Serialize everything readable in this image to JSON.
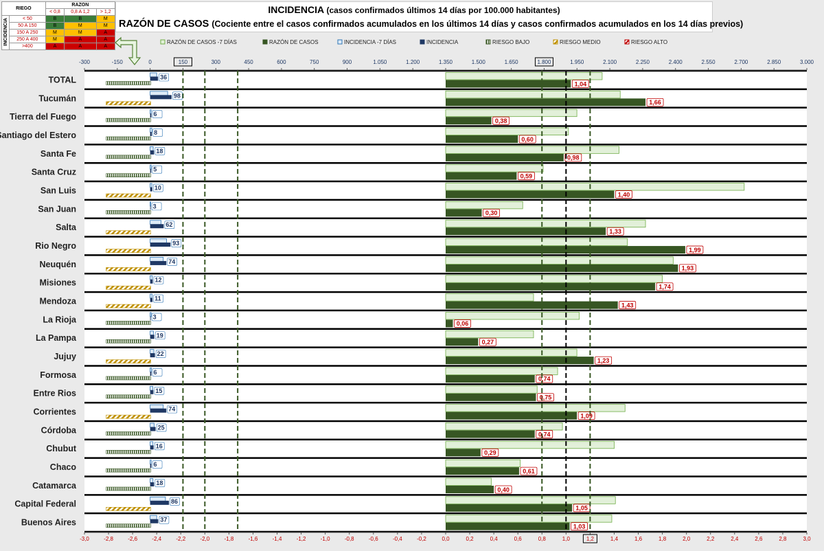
{
  "title": {
    "main": "INCIDENCIA",
    "main_sub": "(casos confirmados últimos 14 días por 100.000 habitantes)",
    "second": "RAZÓN DE CASOS",
    "second_sub": "(Cociente entre el casos confirmados acumulados en los últimos 14 días y casos confirmados acumulados en los 14 días previos)"
  },
  "risk_table": {
    "corner": "RIEGO",
    "razon_header": "RAZON",
    "incidencia_header": "INCIDENCIA",
    "razon_cols": [
      "< 0,8",
      "0,8 A 1,2",
      "> 1,2"
    ],
    "rows": [
      {
        "label": "< 50",
        "cells": [
          "B",
          "B",
          "M"
        ],
        "colors": [
          "g",
          "g",
          "y"
        ]
      },
      {
        "label": "50 A 150",
        "cells": [
          "B",
          "M",
          "M"
        ],
        "colors": [
          "g",
          "y",
          "y"
        ]
      },
      {
        "label": "150 A 250",
        "cells": [
          "M",
          "M",
          "A"
        ],
        "colors": [
          "y",
          "y",
          "r"
        ]
      },
      {
        "label": "250 A 400",
        "cells": [
          "M",
          "A",
          "A"
        ],
        "colors": [
          "y",
          "r",
          "r"
        ]
      },
      {
        "label": ">400",
        "cells": [
          "A",
          "A",
          "A"
        ],
        "colors": [
          "r",
          "r",
          "r"
        ]
      }
    ]
  },
  "chart_data": {
    "type": "bar",
    "orientation": "horizontal",
    "legend": [
      "RAZÓN DE CASOS -7 DÍAS",
      "RAZÓN DE CASOS",
      "INCIDENCIA -7 DÍAS",
      "INCIDENCIA",
      "RIESGO BAJO",
      "RIESGO MEDIO",
      "RIESGO ALTO"
    ],
    "legend_placement": "top",
    "colors": {
      "razon_prev": "#e2f0d9",
      "razon_prev_border": "#70ad47",
      "razon": "#375623",
      "inc_prev": "#deebf7",
      "inc_prev_border": "#2e75b6",
      "inc": "#1f3864",
      "riesgo_bajo": "#385723",
      "riesgo_medio": "#bf9000",
      "riesgo_alto": "#c00000"
    },
    "top_axis": {
      "ticks": [
        "-300",
        "-150",
        "0",
        "150",
        "300",
        "450",
        "600",
        "750",
        "900",
        "1.050",
        "1.200",
        "1.350",
        "1.500",
        "1.650",
        "1.800",
        "1.950",
        "2.100",
        "2.250",
        "2.400",
        "2.550",
        "2.700",
        "2.850",
        "3.000"
      ],
      "boxed": [
        "150",
        "1.800"
      ],
      "range": [
        -300,
        3000
      ]
    },
    "bottom_axis": {
      "ticks": [
        "-3,0",
        "-2,8",
        "-2,6",
        "-2,4",
        "-2,2",
        "-2,0",
        "-1,8",
        "-1,6",
        "-1,4",
        "-1,2",
        "-1,0",
        "-0,8",
        "-0,6",
        "-0,4",
        "-0,2",
        "0,0",
        "0,2",
        "0,4",
        "0,6",
        "0,8",
        "1,0",
        "1,2",
        "1,4",
        "1,6",
        "1,8",
        "2,0",
        "2,2",
        "2,4",
        "2,6",
        "2,8",
        "3,0"
      ],
      "boxed": [
        "1,2"
      ],
      "range": [
        -3.0,
        3.0
      ]
    },
    "reference_lines": {
      "incidence": [
        150,
        250,
        400
      ],
      "ratio_green": [
        0.8,
        1.2
      ],
      "ratio_black": [
        1.0
      ]
    },
    "categories": [
      "TOTAL",
      "Tucumán",
      "Tierra del Fuego",
      "Santiago del Estero",
      "Santa Fe",
      "Santa Cruz",
      "San Luis",
      "San Juan",
      "Salta",
      "Rio Negro",
      "Neuquén",
      "Misiones",
      "Mendoza",
      "La Rioja",
      "La Pampa",
      "Jujuy",
      "Formosa",
      "Entre Rios",
      "Corrientes",
      "Córdoba",
      "Chubut",
      "Chaco",
      "Catamarca",
      "Capital Federal",
      "Buenos Aires"
    ],
    "series": [
      {
        "name": "INCIDENCIA",
        "values": [
          36,
          98,
          6,
          8,
          18,
          5,
          10,
          3,
          62,
          93,
          74,
          12,
          11,
          3,
          19,
          22,
          6,
          15,
          74,
          25,
          16,
          6,
          18,
          86,
          37
        ]
      },
      {
        "name": "INCIDENCIA -7 DÍAS",
        "values": [
          30,
          80,
          5,
          8,
          14,
          5,
          8,
          3,
          50,
          75,
          60,
          10,
          9,
          5,
          15,
          17,
          6,
          12,
          60,
          18,
          13,
          5,
          13,
          70,
          30
        ]
      },
      {
        "name": "RAZÓN DE CASOS",
        "values": [
          1.04,
          1.66,
          0.38,
          0.6,
          0.98,
          0.59,
          1.4,
          0.3,
          1.33,
          1.99,
          1.93,
          1.74,
          1.43,
          0.06,
          0.27,
          1.23,
          0.74,
          0.75,
          1.09,
          0.74,
          0.29,
          0.61,
          0.4,
          1.05,
          1.03
        ]
      },
      {
        "name": "RAZÓN DE CASOS -7 DÍAS",
        "values": [
          1.3,
          1.45,
          1.09,
          1.02,
          1.44,
          0.81,
          2.48,
          0.64,
          1.66,
          1.51,
          1.89,
          1.8,
          0.73,
          1.11,
          0.73,
          1.09,
          0.93,
          0.76,
          1.49,
          0.97,
          1.4,
          0.62,
          0.38,
          1.41,
          1.38
        ]
      },
      {
        "name": "RIESGO",
        "values": [
          "BAJO",
          "MEDIO",
          "BAJO",
          "BAJO",
          "BAJO",
          "BAJO",
          "MEDIO",
          "BAJO",
          "MEDIO",
          "MEDIO",
          "MEDIO",
          "MEDIO",
          "MEDIO",
          "BAJO",
          "BAJO",
          "MEDIO",
          "BAJO",
          "BAJO",
          "MEDIO",
          "BAJO",
          "BAJO",
          "BAJO",
          "BAJO",
          "MEDIO",
          "BAJO"
        ]
      }
    ]
  }
}
